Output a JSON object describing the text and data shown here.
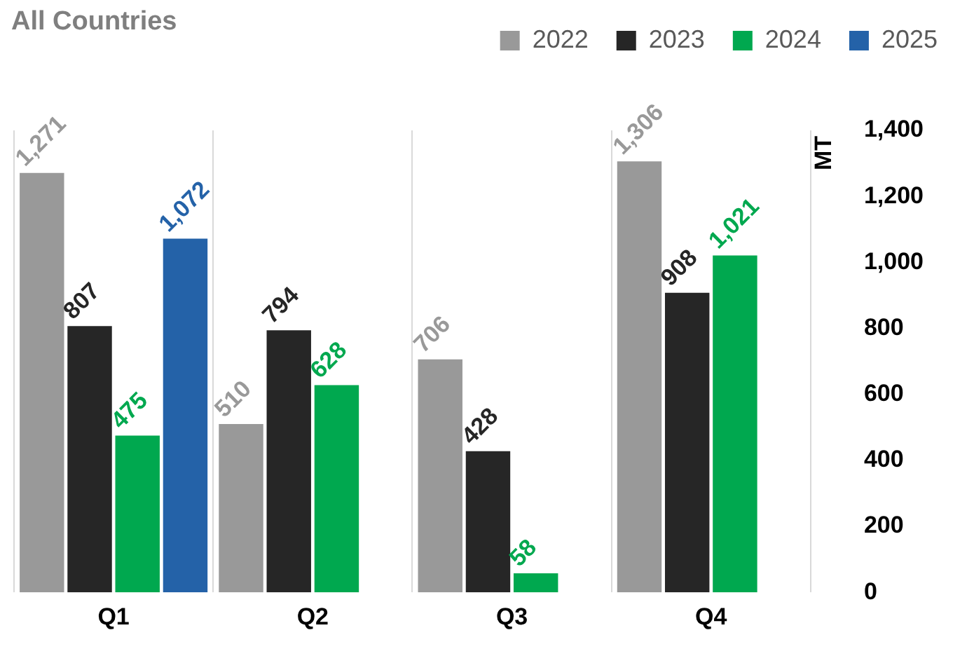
{
  "chart_data": {
    "type": "bar",
    "title": "All Countries",
    "ylabel": "MT",
    "categories": [
      "Q1",
      "Q2",
      "Q3",
      "Q4"
    ],
    "series": [
      {
        "name": "2022",
        "color": "#999999",
        "values": [
          1271,
          510,
          706,
          1306
        ],
        "value_labels": [
          "1,271",
          "510",
          "706",
          "1,306"
        ]
      },
      {
        "name": "2023",
        "color": "#262626",
        "values": [
          807,
          794,
          428,
          908
        ],
        "value_labels": [
          "807",
          "794",
          "428",
          "908"
        ]
      },
      {
        "name": "2024",
        "color": "#00a84f",
        "values": [
          475,
          628,
          58,
          1021
        ],
        "value_labels": [
          "475",
          "628",
          "58",
          "1,021"
        ]
      },
      {
        "name": "2025",
        "color": "#2462a8",
        "values": [
          1072,
          null,
          null,
          null
        ],
        "value_labels": [
          "1,072",
          null,
          null,
          null
        ]
      }
    ],
    "ylim": [
      0,
      1400
    ],
    "yticks": [
      0,
      200,
      400,
      600,
      800,
      {
        "value": 1000,
        "label": "1,000"
      },
      {
        "value": 1200,
        "label": "1,200"
      },
      {
        "value": 1400,
        "label": "1,400"
      }
    ],
    "grid": "x",
    "legend": "top right"
  }
}
